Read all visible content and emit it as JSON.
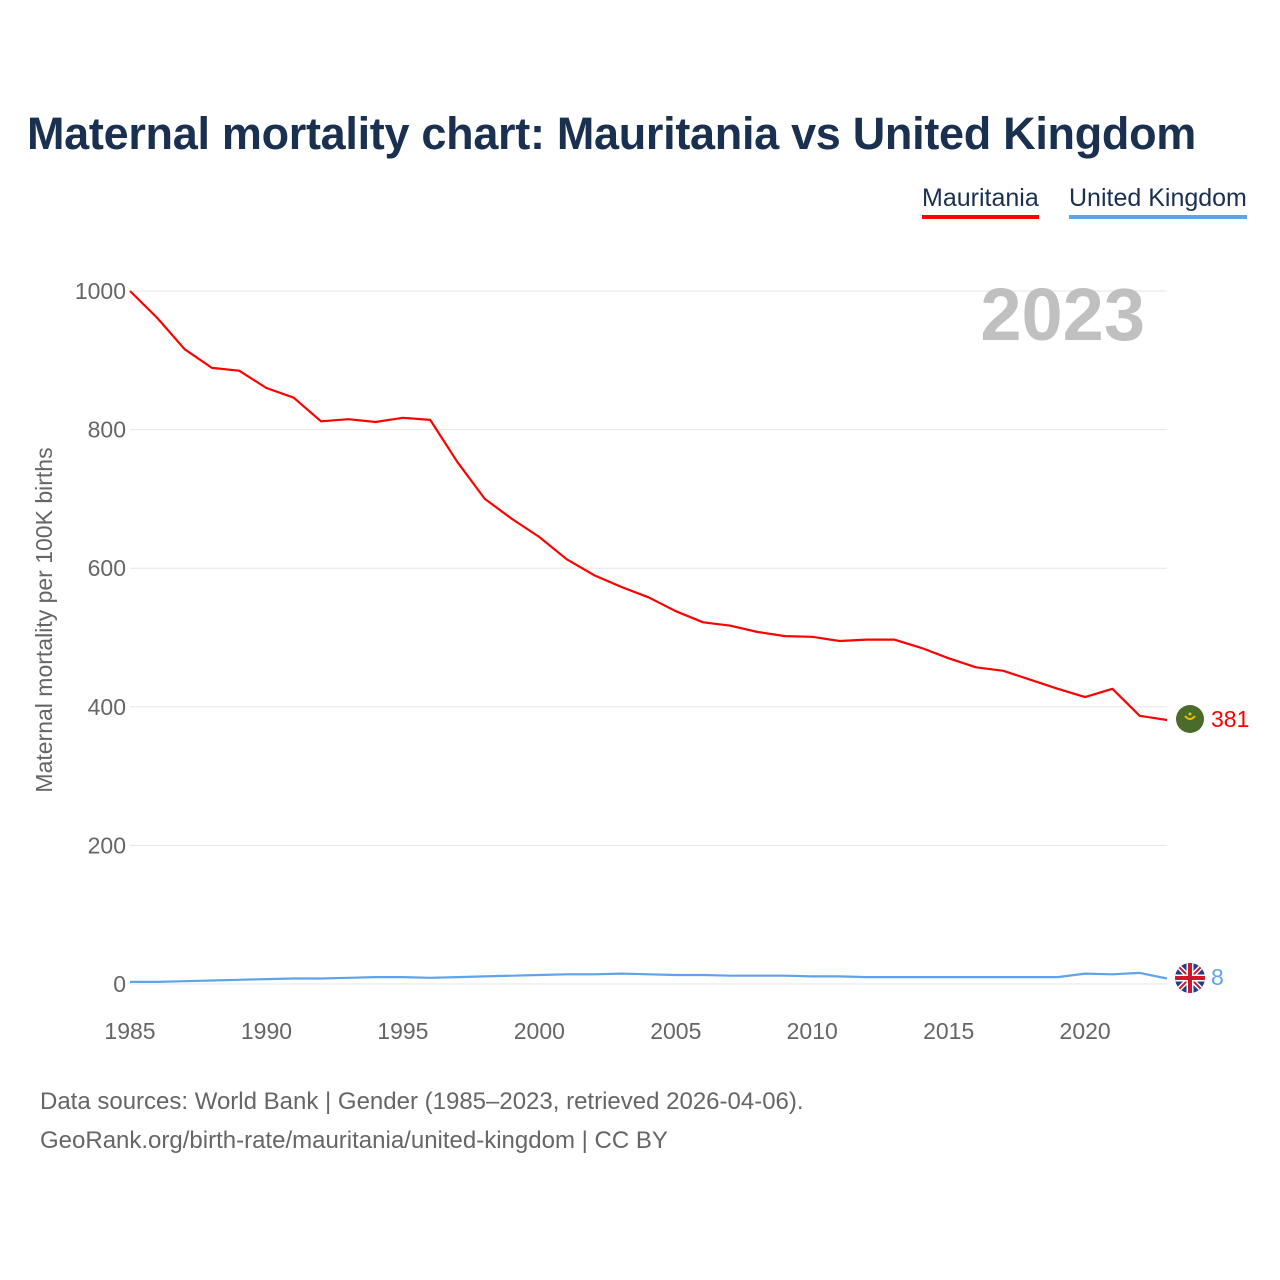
{
  "title": "Maternal mortality chart: Mauritania vs United Kingdom",
  "legend": [
    {
      "name": "Mauritania",
      "color": "#ff0000"
    },
    {
      "name": "United Kingdom",
      "color": "#5fa4e8"
    }
  ],
  "year_label": "2023",
  "footer": {
    "line1": "Data sources: World Bank | Gender (1985–2023, retrieved 2026-04-06).",
    "line2": "GeoRank.org/birth-rate/mauritania/united-kingdom | CC BY"
  },
  "chart_data": {
    "type": "line",
    "title": "Maternal mortality chart: Mauritania vs United Kingdom",
    "xlabel": "",
    "ylabel": "Maternal mortality per 100K births",
    "xlim": [
      1985,
      2023
    ],
    "ylim": [
      0,
      1000
    ],
    "xticks": [
      1985,
      1990,
      1995,
      2000,
      2005,
      2010,
      2015,
      2020
    ],
    "yticks": [
      0,
      200,
      400,
      600,
      800,
      1000
    ],
    "grid": true,
    "legend_position": "top-right",
    "x": [
      1985,
      1986,
      1987,
      1988,
      1989,
      1990,
      1991,
      1992,
      1993,
      1994,
      1995,
      1996,
      1997,
      1998,
      1999,
      2000,
      2001,
      2002,
      2003,
      2004,
      2005,
      2006,
      2007,
      2008,
      2009,
      2010,
      2011,
      2012,
      2013,
      2014,
      2015,
      2016,
      2017,
      2018,
      2019,
      2020,
      2021,
      2022,
      2023
    ],
    "series": [
      {
        "name": "Mauritania",
        "color": "#ff0000",
        "end_label": "381",
        "values": [
          1000,
          961,
          916,
          889,
          885,
          860,
          846,
          812,
          815,
          811,
          817,
          814,
          753,
          700,
          671,
          645,
          613,
          590,
          573,
          558,
          538,
          522,
          517,
          508,
          502,
          501,
          495,
          497,
          497,
          485,
          470,
          457,
          452,
          439,
          426,
          414,
          426,
          387,
          381
        ]
      },
      {
        "name": "United Kingdom",
        "color": "#5fa4e8",
        "end_label": "8",
        "values": [
          3,
          3,
          4,
          5,
          6,
          7,
          8,
          8,
          9,
          10,
          10,
          9,
          10,
          11,
          12,
          13,
          14,
          14,
          15,
          14,
          13,
          13,
          12,
          12,
          12,
          11,
          11,
          10,
          10,
          10,
          10,
          10,
          10,
          10,
          10,
          15,
          14,
          16,
          8
        ]
      }
    ]
  }
}
